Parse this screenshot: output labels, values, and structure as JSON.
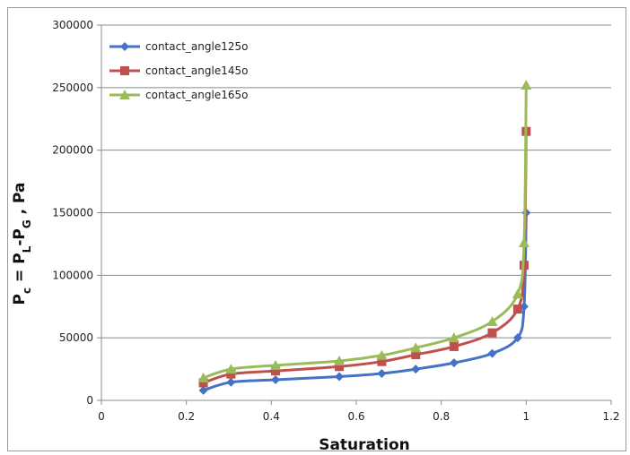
{
  "chart_data": {
    "type": "line",
    "xlabel": "Saturation",
    "ylabel_parts": [
      "P",
      "c",
      " = P",
      "L",
      "-P",
      "G",
      " , Pa"
    ],
    "xlim": [
      0,
      1.2
    ],
    "ylim": [
      0,
      300000
    ],
    "x_ticks": [
      "0",
      "0.2",
      "0.4",
      "0.6",
      "0.8",
      "1",
      "1.2"
    ],
    "y_ticks": [
      "0",
      "50000",
      "100000",
      "150000",
      "200000",
      "250000",
      "300000"
    ],
    "grid": "horizontal",
    "legend_position": "top-left",
    "series": [
      {
        "name": "contact_angle125o",
        "color": "#4472c4",
        "marker": "diamond",
        "x": [
          0.24,
          0.305,
          0.41,
          0.56,
          0.66,
          0.74,
          0.83,
          0.92,
          0.98,
          0.995,
          1.0
        ],
        "y": [
          8000,
          14500,
          16500,
          19000,
          21500,
          25000,
          30000,
          37500,
          50000,
          75000,
          150000
        ]
      },
      {
        "name": "contact_angle145o",
        "color": "#c0504d",
        "marker": "square",
        "x": [
          0.24,
          0.305,
          0.41,
          0.56,
          0.66,
          0.74,
          0.83,
          0.92,
          0.98,
          0.995,
          1.0
        ],
        "y": [
          14000,
          21000,
          23500,
          27000,
          31000,
          36500,
          43000,
          54000,
          73000,
          108000,
          215000
        ]
      },
      {
        "name": "contact_angle165o",
        "color": "#9bbb59",
        "marker": "triangle",
        "x": [
          0.24,
          0.305,
          0.41,
          0.56,
          0.66,
          0.74,
          0.83,
          0.92,
          0.98,
          0.995,
          1.0
        ],
        "y": [
          18000,
          25000,
          28000,
          31500,
          36000,
          42000,
          50000,
          63000,
          85000,
          126000,
          252000
        ]
      }
    ]
  }
}
